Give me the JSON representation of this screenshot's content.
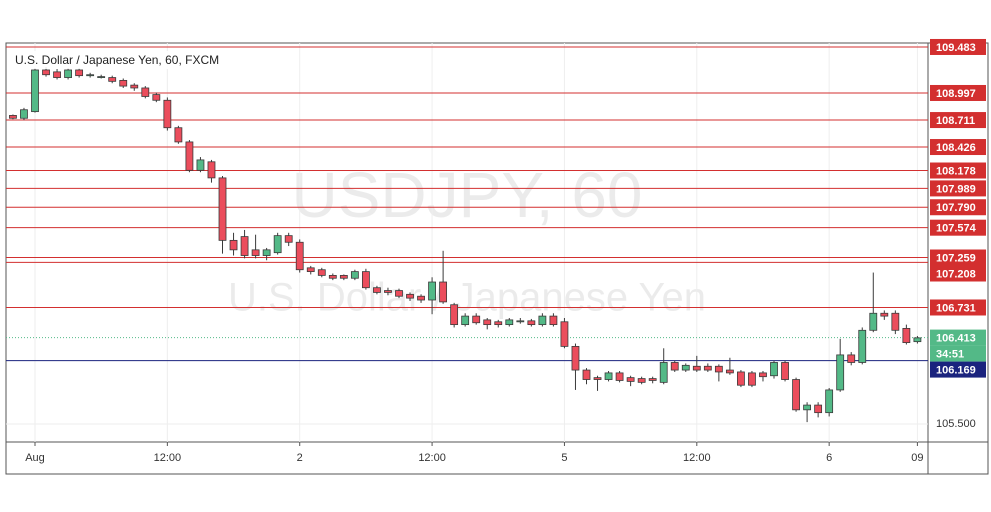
{
  "chart_data": {
    "type": "candlestick",
    "title": "U.S. Dollar / Japanese Yen, 60, FXCM",
    "watermark": "USDJPY, 60",
    "watermark_subtitle": "U.S. Dollar / Japanese Yen",
    "categories": [
      null,
      null,
      "Aug",
      null,
      null,
      null,
      null,
      null,
      null,
      null,
      null,
      null,
      null,
      null,
      "12:00",
      null,
      null,
      null,
      null,
      null,
      null,
      null,
      null,
      null,
      null,
      null,
      "2",
      null,
      null,
      null,
      null,
      null,
      null,
      null,
      null,
      null,
      null,
      null,
      "12:00",
      null,
      null,
      null,
      null,
      null,
      null,
      null,
      null,
      null,
      null,
      null,
      "5",
      null,
      null,
      null,
      null,
      null,
      null,
      null,
      null,
      null,
      null,
      null,
      "12:00",
      null,
      null,
      null,
      null,
      null,
      null,
      null,
      null,
      null,
      null,
      null,
      "6",
      null,
      null,
      null,
      null,
      null,
      null,
      null,
      "09"
    ],
    "series": [
      {
        "up_color": "#53b987",
        "down_color": "#eb4d5c",
        "outline_color": "#3a3a3a",
        "open": [
          108.76,
          108.73,
          108.8,
          109.24,
          109.22,
          109.16,
          109.24,
          109.18,
          109.17,
          109.16,
          109.13,
          109.08,
          109.05,
          108.98,
          108.92,
          108.63,
          108.48,
          108.18,
          108.27,
          108.1,
          107.44,
          107.48,
          107.34,
          107.28,
          107.31,
          107.49,
          107.42,
          107.15,
          107.13,
          107.07,
          107.07,
          107.04,
          107.11,
          106.94,
          106.91,
          106.91,
          106.87,
          106.85,
          106.81,
          107.0,
          106.76,
          106.55,
          106.64,
          106.6,
          106.58,
          106.55,
          106.59,
          106.59,
          106.55,
          106.64,
          106.58,
          106.32,
          106.07,
          105.99,
          105.97,
          106.04,
          105.99,
          105.98,
          105.98,
          105.94,
          106.15,
          106.07,
          106.11,
          106.11,
          106.11,
          106.07,
          106.05,
          106.04,
          106.04,
          106.01,
          106.15,
          105.97,
          105.65,
          105.7,
          105.62,
          105.86,
          106.23,
          106.15,
          106.49,
          106.67,
          106.67,
          106.51,
          106.37
        ],
        "high": [
          108.77,
          108.84,
          109.26,
          109.27,
          109.25,
          109.26,
          109.26,
          109.21,
          109.19,
          109.18,
          109.15,
          109.1,
          109.07,
          109.0,
          108.95,
          108.65,
          108.5,
          108.32,
          108.29,
          108.12,
          107.52,
          107.55,
          107.5,
          107.36,
          107.52,
          107.52,
          107.45,
          107.17,
          107.15,
          107.09,
          107.08,
          107.13,
          107.14,
          106.96,
          106.94,
          106.93,
          106.89,
          106.87,
          107.05,
          107.33,
          106.78,
          106.67,
          106.67,
          106.62,
          106.6,
          106.62,
          106.62,
          106.61,
          106.67,
          106.67,
          106.62,
          106.35,
          106.09,
          106.01,
          106.06,
          106.06,
          106.01,
          106.0,
          106.0,
          106.3,
          106.17,
          106.14,
          106.22,
          106.14,
          106.13,
          106.2,
          106.07,
          106.06,
          106.06,
          106.17,
          106.17,
          105.99,
          105.73,
          105.73,
          105.88,
          106.4,
          106.26,
          106.52,
          107.1,
          106.7,
          106.7,
          106.55,
          106.43
        ],
        "low": [
          108.72,
          108.71,
          108.79,
          109.17,
          109.14,
          109.14,
          109.16,
          109.16,
          109.15,
          109.1,
          109.05,
          109.02,
          108.94,
          108.9,
          108.6,
          108.46,
          108.16,
          108.16,
          108.05,
          107.3,
          107.28,
          107.25,
          107.25,
          107.23,
          107.29,
          107.38,
          107.1,
          107.08,
          107.05,
          107.02,
          107.02,
          107.02,
          106.92,
          106.87,
          106.86,
          106.83,
          106.8,
          106.78,
          106.66,
          106.77,
          106.52,
          106.53,
          106.55,
          106.5,
          106.52,
          106.53,
          106.56,
          106.53,
          106.53,
          106.53,
          106.3,
          105.86,
          105.92,
          105.85,
          105.95,
          105.94,
          105.9,
          105.92,
          105.93,
          105.92,
          106.05,
          106.05,
          106.05,
          106.05,
          105.95,
          106.02,
          105.89,
          105.89,
          105.95,
          105.98,
          105.95,
          105.63,
          105.52,
          105.57,
          105.58,
          105.84,
          106.12,
          106.13,
          106.47,
          106.6,
          106.45,
          106.34,
          106.35
        ],
        "close": [
          108.73,
          108.82,
          109.24,
          109.19,
          109.16,
          109.24,
          109.18,
          109.19,
          109.17,
          109.12,
          109.07,
          109.05,
          108.96,
          108.92,
          108.63,
          108.48,
          108.18,
          108.29,
          108.1,
          107.44,
          107.34,
          107.28,
          107.28,
          107.34,
          107.49,
          107.42,
          107.13,
          107.11,
          107.07,
          107.04,
          107.04,
          107.11,
          106.94,
          106.89,
          106.89,
          106.85,
          106.83,
          106.81,
          107.0,
          106.79,
          106.55,
          106.64,
          106.57,
          106.55,
          106.55,
          106.6,
          106.59,
          106.55,
          106.64,
          106.55,
          106.32,
          106.07,
          105.97,
          105.97,
          106.04,
          105.96,
          105.95,
          105.94,
          105.96,
          106.15,
          106.07,
          106.12,
          106.07,
          106.07,
          106.05,
          106.04,
          105.91,
          105.91,
          106.0,
          106.15,
          105.97,
          105.65,
          105.7,
          105.62,
          105.86,
          106.23,
          106.15,
          106.49,
          106.67,
          106.64,
          106.49,
          106.36,
          106.41
        ]
      }
    ],
    "levels": [
      {
        "value": 109.483,
        "label": "109.483"
      },
      {
        "value": 108.997,
        "label": "108.997"
      },
      {
        "value": 108.711,
        "label": "108.711"
      },
      {
        "value": 108.426,
        "label": "108.426"
      },
      {
        "value": 108.178,
        "label": "108.178"
      },
      {
        "value": 107.989,
        "label": "107.989"
      },
      {
        "value": 107.79,
        "label": "107.790"
      },
      {
        "value": 107.574,
        "label": "107.574"
      },
      {
        "value": 107.259,
        "label": "107.259"
      },
      {
        "value": 107.208,
        "label": "107.208"
      },
      {
        "value": 106.731,
        "label": "106.731"
      }
    ],
    "level_color": "#d32f2f",
    "support": {
      "value": 106.169,
      "label": "106.169"
    },
    "support_color": "#1a237e",
    "last_price": {
      "value": 106.413,
      "label": "106.413"
    },
    "countdown": "34:51",
    "ylim": [
      105.31,
      109.525
    ],
    "yticks": [
      {
        "value": 105.5,
        "label": "105.500"
      }
    ],
    "grid": true
  }
}
